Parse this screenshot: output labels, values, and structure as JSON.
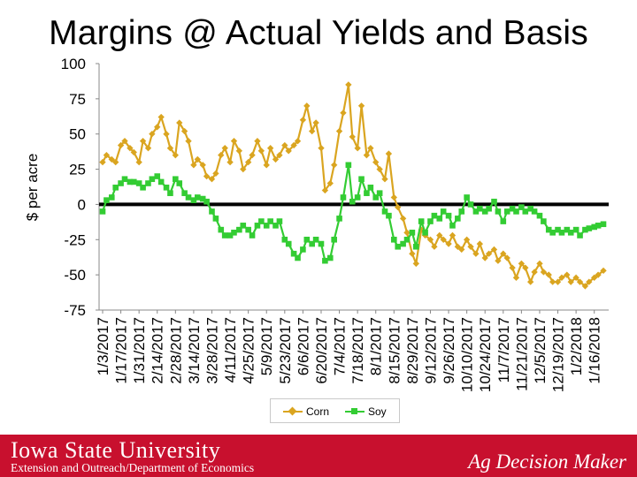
{
  "slide": {
    "title": "Margins @ Actual Yields and Basis",
    "footer_university": "Iowa State University",
    "footer_department": "Extension and Outreach/Department of Economics",
    "footer_brand": "Ag Decision Maker",
    "footer_color": "#c8102e"
  },
  "chart_data": {
    "type": "line",
    "title": "",
    "xlabel": "",
    "ylabel": "$ per acre",
    "ylim": [
      -75,
      100
    ],
    "yticks": [
      100,
      75,
      50,
      25,
      0,
      -25,
      -50,
      -75
    ],
    "xlim": [
      "2017-01-03",
      "2018-01-23"
    ],
    "xtick_labels": [
      "1/3/2017",
      "1/17/2017",
      "1/31/2017",
      "2/14/2017",
      "2/28/2017",
      "3/14/2017",
      "3/28/2017",
      "4/11/2017",
      "4/25/2017",
      "5/9/2017",
      "5/23/2017",
      "6/6/2017",
      "6/20/2017",
      "7/4/2017",
      "7/18/2017",
      "8/1/2017",
      "8/15/2017",
      "8/29/2017",
      "9/12/2017",
      "9/26/2017",
      "10/10/2017",
      "10/24/2017",
      "11/7/2017",
      "11/21/2017",
      "12/5/2017",
      "12/19/2017",
      "1/2/2018",
      "1/16/2018"
    ],
    "grid": false,
    "legend": "bottom-center",
    "zero_line": true,
    "series": [
      {
        "name": "Corn",
        "color": "#daa520",
        "marker": "diamond",
        "points": [
          [
            "2017-01-03",
            30
          ],
          [
            "2017-01-06",
            35
          ],
          [
            "2017-01-10",
            32
          ],
          [
            "2017-01-13",
            30
          ],
          [
            "2017-01-17",
            42
          ],
          [
            "2017-01-20",
            45
          ],
          [
            "2017-01-24",
            40
          ],
          [
            "2017-01-27",
            37
          ],
          [
            "2017-01-31",
            30
          ],
          [
            "2017-02-03",
            45
          ],
          [
            "2017-02-07",
            40
          ],
          [
            "2017-02-10",
            50
          ],
          [
            "2017-02-14",
            55
          ],
          [
            "2017-02-17",
            62
          ],
          [
            "2017-02-21",
            50
          ],
          [
            "2017-02-24",
            40
          ],
          [
            "2017-02-28",
            35
          ],
          [
            "2017-03-03",
            58
          ],
          [
            "2017-03-07",
            52
          ],
          [
            "2017-03-10",
            45
          ],
          [
            "2017-03-14",
            28
          ],
          [
            "2017-03-17",
            32
          ],
          [
            "2017-03-21",
            28
          ],
          [
            "2017-03-24",
            20
          ],
          [
            "2017-03-28",
            18
          ],
          [
            "2017-03-31",
            22
          ],
          [
            "2017-04-04",
            35
          ],
          [
            "2017-04-07",
            40
          ],
          [
            "2017-04-11",
            30
          ],
          [
            "2017-04-14",
            45
          ],
          [
            "2017-04-18",
            38
          ],
          [
            "2017-04-21",
            25
          ],
          [
            "2017-04-25",
            30
          ],
          [
            "2017-04-28",
            35
          ],
          [
            "2017-05-02",
            45
          ],
          [
            "2017-05-05",
            38
          ],
          [
            "2017-05-09",
            28
          ],
          [
            "2017-05-12",
            40
          ],
          [
            "2017-05-16",
            32
          ],
          [
            "2017-05-19",
            35
          ],
          [
            "2017-05-23",
            42
          ],
          [
            "2017-05-26",
            38
          ],
          [
            "2017-05-30",
            42
          ],
          [
            "2017-06-02",
            45
          ],
          [
            "2017-06-06",
            60
          ],
          [
            "2017-06-09",
            70
          ],
          [
            "2017-06-13",
            52
          ],
          [
            "2017-06-16",
            58
          ],
          [
            "2017-06-20",
            40
          ],
          [
            "2017-06-23",
            10
          ],
          [
            "2017-06-27",
            15
          ],
          [
            "2017-06-30",
            28
          ],
          [
            "2017-07-04",
            52
          ],
          [
            "2017-07-07",
            65
          ],
          [
            "2017-07-11",
            85
          ],
          [
            "2017-07-14",
            48
          ],
          [
            "2017-07-18",
            40
          ],
          [
            "2017-07-21",
            70
          ],
          [
            "2017-07-25",
            35
          ],
          [
            "2017-07-28",
            40
          ],
          [
            "2017-08-01",
            30
          ],
          [
            "2017-08-04",
            25
          ],
          [
            "2017-08-08",
            18
          ],
          [
            "2017-08-11",
            36
          ],
          [
            "2017-08-15",
            5
          ],
          [
            "2017-08-18",
            -2
          ],
          [
            "2017-08-22",
            -10
          ],
          [
            "2017-08-25",
            -20
          ],
          [
            "2017-08-29",
            -35
          ],
          [
            "2017-09-01",
            -42
          ],
          [
            "2017-09-05",
            -18
          ],
          [
            "2017-09-08",
            -22
          ],
          [
            "2017-09-12",
            -25
          ],
          [
            "2017-09-15",
            -30
          ],
          [
            "2017-09-19",
            -22
          ],
          [
            "2017-09-22",
            -25
          ],
          [
            "2017-09-26",
            -28
          ],
          [
            "2017-09-29",
            -22
          ],
          [
            "2017-10-03",
            -30
          ],
          [
            "2017-10-06",
            -32
          ],
          [
            "2017-10-10",
            -25
          ],
          [
            "2017-10-13",
            -30
          ],
          [
            "2017-10-17",
            -35
          ],
          [
            "2017-10-20",
            -28
          ],
          [
            "2017-10-24",
            -38
          ],
          [
            "2017-10-27",
            -35
          ],
          [
            "2017-10-31",
            -32
          ],
          [
            "2017-11-03",
            -40
          ],
          [
            "2017-11-07",
            -35
          ],
          [
            "2017-11-10",
            -38
          ],
          [
            "2017-11-14",
            -45
          ],
          [
            "2017-11-17",
            -52
          ],
          [
            "2017-11-21",
            -42
          ],
          [
            "2017-11-24",
            -45
          ],
          [
            "2017-11-28",
            -55
          ],
          [
            "2017-12-01",
            -48
          ],
          [
            "2017-12-05",
            -42
          ],
          [
            "2017-12-08",
            -48
          ],
          [
            "2017-12-12",
            -50
          ],
          [
            "2017-12-15",
            -55
          ],
          [
            "2017-12-19",
            -55
          ],
          [
            "2017-12-22",
            -52
          ],
          [
            "2017-12-26",
            -50
          ],
          [
            "2017-12-29",
            -55
          ],
          [
            "2018-01-02",
            -52
          ],
          [
            "2018-01-05",
            -55
          ],
          [
            "2018-01-09",
            -58
          ],
          [
            "2018-01-12",
            -55
          ],
          [
            "2018-01-16",
            -52
          ],
          [
            "2018-01-19",
            -50
          ],
          [
            "2018-01-23",
            -47
          ]
        ]
      },
      {
        "name": "Soy",
        "color": "#33cc33",
        "marker": "square",
        "points": [
          [
            "2017-01-03",
            -5
          ],
          [
            "2017-01-06",
            3
          ],
          [
            "2017-01-10",
            5
          ],
          [
            "2017-01-13",
            12
          ],
          [
            "2017-01-17",
            15
          ],
          [
            "2017-01-20",
            18
          ],
          [
            "2017-01-24",
            16
          ],
          [
            "2017-01-27",
            16
          ],
          [
            "2017-01-31",
            15
          ],
          [
            "2017-02-03",
            12
          ],
          [
            "2017-02-07",
            15
          ],
          [
            "2017-02-10",
            18
          ],
          [
            "2017-02-14",
            20
          ],
          [
            "2017-02-17",
            16
          ],
          [
            "2017-02-21",
            12
          ],
          [
            "2017-02-24",
            8
          ],
          [
            "2017-02-28",
            18
          ],
          [
            "2017-03-03",
            15
          ],
          [
            "2017-03-07",
            8
          ],
          [
            "2017-03-10",
            5
          ],
          [
            "2017-03-14",
            3
          ],
          [
            "2017-03-17",
            5
          ],
          [
            "2017-03-21",
            4
          ],
          [
            "2017-03-24",
            2
          ],
          [
            "2017-03-28",
            -5
          ],
          [
            "2017-03-31",
            -10
          ],
          [
            "2017-04-04",
            -18
          ],
          [
            "2017-04-07",
            -22
          ],
          [
            "2017-04-11",
            -22
          ],
          [
            "2017-04-14",
            -20
          ],
          [
            "2017-04-18",
            -18
          ],
          [
            "2017-04-21",
            -15
          ],
          [
            "2017-04-25",
            -18
          ],
          [
            "2017-04-28",
            -22
          ],
          [
            "2017-05-02",
            -15
          ],
          [
            "2017-05-05",
            -12
          ],
          [
            "2017-05-09",
            -15
          ],
          [
            "2017-05-12",
            -12
          ],
          [
            "2017-05-16",
            -15
          ],
          [
            "2017-05-19",
            -12
          ],
          [
            "2017-05-23",
            -25
          ],
          [
            "2017-05-26",
            -28
          ],
          [
            "2017-05-30",
            -35
          ],
          [
            "2017-06-02",
            -38
          ],
          [
            "2017-06-06",
            -32
          ],
          [
            "2017-06-09",
            -25
          ],
          [
            "2017-06-13",
            -28
          ],
          [
            "2017-06-16",
            -25
          ],
          [
            "2017-06-20",
            -28
          ],
          [
            "2017-06-23",
            -40
          ],
          [
            "2017-06-27",
            -38
          ],
          [
            "2017-06-30",
            -25
          ],
          [
            "2017-07-04",
            -10
          ],
          [
            "2017-07-07",
            5
          ],
          [
            "2017-07-11",
            28
          ],
          [
            "2017-07-14",
            2
          ],
          [
            "2017-07-18",
            5
          ],
          [
            "2017-07-21",
            18
          ],
          [
            "2017-07-25",
            8
          ],
          [
            "2017-07-28",
            12
          ],
          [
            "2017-08-01",
            5
          ],
          [
            "2017-08-04",
            8
          ],
          [
            "2017-08-08",
            -5
          ],
          [
            "2017-08-11",
            -8
          ],
          [
            "2017-08-15",
            -25
          ],
          [
            "2017-08-18",
            -30
          ],
          [
            "2017-08-22",
            -28
          ],
          [
            "2017-08-25",
            -25
          ],
          [
            "2017-08-29",
            -20
          ],
          [
            "2017-09-01",
            -30
          ],
          [
            "2017-09-05",
            -12
          ],
          [
            "2017-09-08",
            -20
          ],
          [
            "2017-09-12",
            -12
          ],
          [
            "2017-09-15",
            -8
          ],
          [
            "2017-09-19",
            -10
          ],
          [
            "2017-09-22",
            -5
          ],
          [
            "2017-09-26",
            -8
          ],
          [
            "2017-09-29",
            -15
          ],
          [
            "2017-10-03",
            -10
          ],
          [
            "2017-10-06",
            -5
          ],
          [
            "2017-10-10",
            5
          ],
          [
            "2017-10-13",
            0
          ],
          [
            "2017-10-17",
            -5
          ],
          [
            "2017-10-20",
            -3
          ],
          [
            "2017-10-24",
            -5
          ],
          [
            "2017-10-27",
            -3
          ],
          [
            "2017-10-31",
            2
          ],
          [
            "2017-11-03",
            -5
          ],
          [
            "2017-11-07",
            -12
          ],
          [
            "2017-11-10",
            -5
          ],
          [
            "2017-11-14",
            -3
          ],
          [
            "2017-11-17",
            -5
          ],
          [
            "2017-11-21",
            -2
          ],
          [
            "2017-11-24",
            -5
          ],
          [
            "2017-11-28",
            -3
          ],
          [
            "2017-12-01",
            -5
          ],
          [
            "2017-12-05",
            -8
          ],
          [
            "2017-12-08",
            -12
          ],
          [
            "2017-12-12",
            -18
          ],
          [
            "2017-12-15",
            -20
          ],
          [
            "2017-12-19",
            -18
          ],
          [
            "2017-12-22",
            -20
          ],
          [
            "2017-12-26",
            -18
          ],
          [
            "2017-12-29",
            -20
          ],
          [
            "2018-01-02",
            -18
          ],
          [
            "2018-01-05",
            -22
          ],
          [
            "2018-01-09",
            -18
          ],
          [
            "2018-01-12",
            -17
          ],
          [
            "2018-01-16",
            -16
          ],
          [
            "2018-01-19",
            -15
          ],
          [
            "2018-01-23",
            -14
          ]
        ]
      }
    ]
  }
}
